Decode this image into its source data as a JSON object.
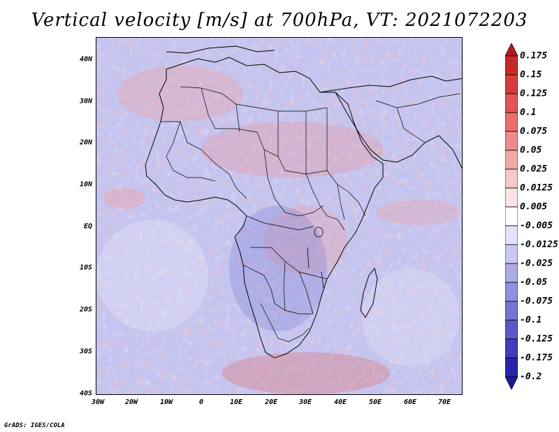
{
  "title": "Vertical velocity [m/s] at 700hPa, VT: 2021072203",
  "footer": "GrADS: IGES/COLA",
  "map": {
    "lat_labels": [
      "40N",
      "30N",
      "20N",
      "10N",
      "EQ",
      "10S",
      "20S",
      "30S",
      "40S"
    ],
    "lon_labels": [
      "30W",
      "20W",
      "10W",
      "0",
      "10E",
      "20E",
      "30E",
      "40E",
      "50E",
      "60E",
      "70E"
    ],
    "lat_range": [
      -40,
      45
    ],
    "lon_range": [
      -30,
      75
    ]
  },
  "colorbar": {
    "labels": [
      "0.175",
      "0.15",
      "0.125",
      "0.1",
      "0.075",
      "0.05",
      "0.025",
      "0.0125",
      "0.005",
      "-0.005",
      "-0.0125",
      "-0.025",
      "-0.05",
      "-0.075",
      "-0.1",
      "-0.125",
      "-0.175",
      "-0.2"
    ],
    "colors": [
      "#b31b1b",
      "#c82828",
      "#d63c3c",
      "#e05555",
      "#e87070",
      "#ee8c8c",
      "#f3a8a8",
      "#f8c8c8",
      "#fce4e4",
      "#ffffff",
      "#e4e4f8",
      "#c8c8f0",
      "#ababe6",
      "#9090dc",
      "#7575d2",
      "#5a5ac6",
      "#3e3eba",
      "#2626aa",
      "#1a1a96"
    ]
  }
}
